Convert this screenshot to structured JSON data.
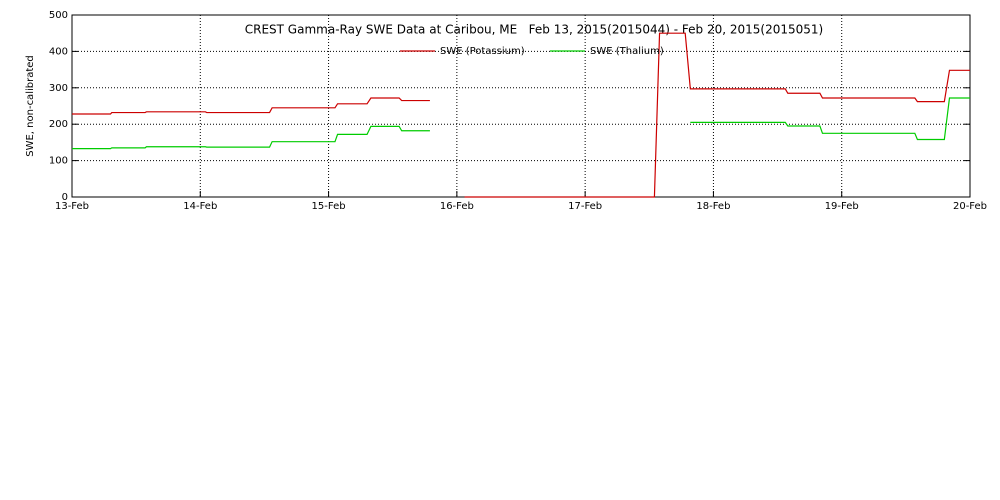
{
  "chart_data": {
    "type": "line",
    "title": "CREST Gamma-Ray SWE Data at Caribou, ME   Feb 13, 2015(2015044) - Feb 20, 2015(2015051)",
    "y_label": "SWE, non-calibrated",
    "x": [
      0,
      0.3,
      0.31,
      0.57,
      0.58,
      1.04,
      1.05,
      1.54,
      1.56,
      2.05,
      2.07,
      2.3,
      2.33,
      2.55,
      2.57,
      2.79,
      2.9,
      3.06,
      4.54,
      4.58,
      4.78,
      4.82,
      5.56,
      5.58,
      5.83,
      5.85,
      6.57,
      6.59,
      6.8,
      6.84,
      7.0
    ],
    "series": [
      {
        "name": "SWE (Potassium)",
        "color": "#cc0000",
        "values": [
          228,
          228,
          232,
          232,
          234,
          234,
          232,
          232,
          245,
          245,
          256,
          256,
          272,
          272,
          265,
          265,
          null,
          0,
          0,
          450,
          450,
          297,
          297,
          285,
          285,
          272,
          272,
          262,
          262,
          348,
          348
        ]
      },
      {
        "name": "SWE (Thalium)",
        "color": "#00cc00",
        "values": [
          133,
          133,
          135,
          135,
          138,
          138,
          137,
          137,
          152,
          152,
          172,
          172,
          194,
          194,
          182,
          182,
          null,
          null,
          null,
          null,
          null,
          205,
          205,
          195,
          195,
          175,
          175,
          158,
          158,
          272,
          272
        ]
      }
    ],
    "xlim": [
      0,
      7
    ],
    "xticks": [
      {
        "value": 0,
        "label": "13-Feb"
      },
      {
        "value": 1,
        "label": "14-Feb"
      },
      {
        "value": 2,
        "label": "15-Feb"
      },
      {
        "value": 3,
        "label": "16-Feb"
      },
      {
        "value": 4,
        "label": "17-Feb"
      },
      {
        "value": 5,
        "label": "18-Feb"
      },
      {
        "value": 6,
        "label": "19-Feb"
      },
      {
        "value": 7,
        "label": "20-Feb"
      }
    ],
    "ylim": [
      0,
      500
    ],
    "yticks": [
      0,
      100,
      200,
      300,
      400,
      500
    ],
    "grid": true
  }
}
